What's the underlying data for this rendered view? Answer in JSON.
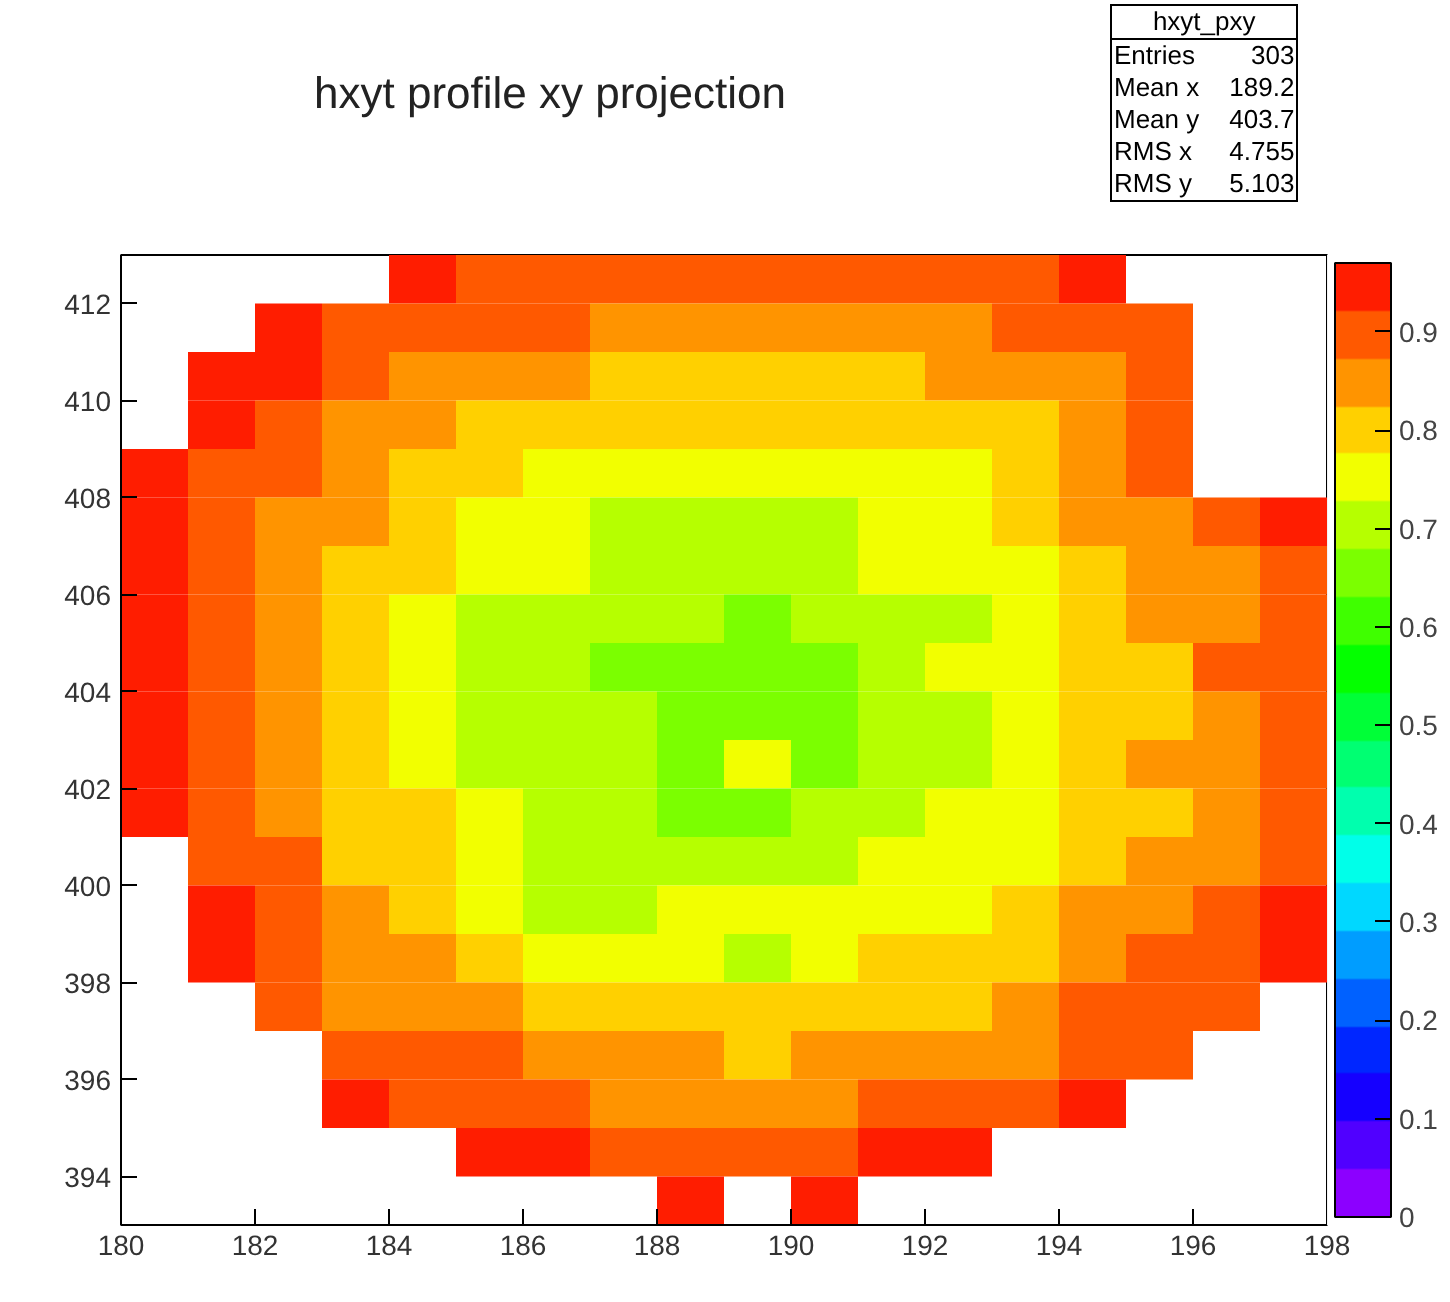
{
  "chart_data": {
    "type": "heatmap",
    "title": "hxyt profile xy projection",
    "annotations": [
      "hxyt_pxy",
      "Entries 303",
      "Mean x 189.2",
      "Mean y 403.7",
      "RMS x 4.755",
      "RMS y 5.103"
    ],
    "cells": [
      [
        null,
        null,
        null,
        null,
        0.95,
        0.9,
        0.9,
        0.9,
        0.9,
        0.9,
        0.9,
        0.9,
        0.9,
        0.9,
        0.95,
        null,
        null,
        null
      ],
      [
        null,
        null,
        0.95,
        0.9,
        0.9,
        0.9,
        0.9,
        0.85,
        0.85,
        0.85,
        0.85,
        0.85,
        0.85,
        0.9,
        0.9,
        0.9,
        null,
        null
      ],
      [
        null,
        0.95,
        0.95,
        0.9,
        0.85,
        0.85,
        0.85,
        0.8,
        0.8,
        0.8,
        0.8,
        0.8,
        0.85,
        0.85,
        0.85,
        0.9,
        null,
        null
      ],
      [
        null,
        0.95,
        0.9,
        0.85,
        0.85,
        0.8,
        0.8,
        0.8,
        0.8,
        0.8,
        0.8,
        0.8,
        0.8,
        0.8,
        0.85,
        0.9,
        null,
        null
      ],
      [
        0.95,
        0.9,
        0.9,
        0.85,
        0.8,
        0.8,
        0.75,
        0.75,
        0.75,
        0.75,
        0.75,
        0.75,
        0.75,
        0.8,
        0.85,
        0.9,
        null,
        null
      ],
      [
        0.95,
        0.9,
        0.85,
        0.85,
        0.8,
        0.75,
        0.75,
        0.7,
        0.7,
        0.7,
        0.7,
        0.75,
        0.75,
        0.8,
        0.85,
        0.85,
        0.9,
        0.95
      ],
      [
        0.95,
        0.9,
        0.85,
        0.8,
        0.8,
        0.75,
        0.75,
        0.7,
        0.7,
        0.7,
        0.7,
        0.75,
        0.75,
        0.75,
        0.8,
        0.85,
        0.85,
        0.9
      ],
      [
        0.95,
        0.9,
        0.85,
        0.8,
        0.75,
        0.7,
        0.7,
        0.7,
        0.7,
        0.65,
        0.7,
        0.7,
        0.7,
        0.75,
        0.8,
        0.85,
        0.85,
        0.9
      ],
      [
        0.95,
        0.9,
        0.85,
        0.8,
        0.75,
        0.7,
        0.7,
        0.65,
        0.65,
        0.65,
        0.65,
        0.7,
        0.75,
        0.75,
        0.8,
        0.8,
        0.9,
        0.9
      ],
      [
        0.95,
        0.9,
        0.85,
        0.8,
        0.75,
        0.7,
        0.7,
        0.7,
        0.65,
        0.65,
        0.65,
        0.7,
        0.7,
        0.75,
        0.8,
        0.8,
        0.85,
        0.9
      ],
      [
        0.95,
        0.9,
        0.85,
        0.8,
        0.75,
        0.7,
        0.7,
        0.7,
        0.65,
        0.75,
        0.65,
        0.7,
        0.7,
        0.75,
        0.8,
        0.85,
        0.85,
        0.9
      ],
      [
        0.95,
        0.9,
        0.85,
        0.8,
        0.8,
        0.75,
        0.7,
        0.7,
        0.65,
        0.65,
        0.7,
        0.7,
        0.75,
        0.75,
        0.8,
        0.8,
        0.85,
        0.9
      ],
      [
        null,
        0.9,
        0.9,
        0.8,
        0.8,
        0.75,
        0.7,
        0.7,
        0.7,
        0.7,
        0.7,
        0.75,
        0.75,
        0.75,
        0.8,
        0.85,
        0.85,
        0.9
      ],
      [
        null,
        0.95,
        0.9,
        0.85,
        0.8,
        0.75,
        0.7,
        0.7,
        0.75,
        0.75,
        0.75,
        0.75,
        0.75,
        0.8,
        0.85,
        0.85,
        0.9,
        0.95
      ],
      [
        null,
        0.95,
        0.9,
        0.85,
        0.85,
        0.8,
        0.75,
        0.75,
        0.75,
        0.7,
        0.75,
        0.8,
        0.8,
        0.8,
        0.85,
        0.9,
        0.9,
        0.95
      ],
      [
        null,
        null,
        0.9,
        0.85,
        0.85,
        0.85,
        0.8,
        0.8,
        0.8,
        0.8,
        0.8,
        0.8,
        0.8,
        0.85,
        0.9,
        0.9,
        0.9,
        null
      ],
      [
        null,
        null,
        null,
        0.9,
        0.9,
        0.9,
        0.85,
        0.85,
        0.85,
        0.8,
        0.85,
        0.85,
        0.85,
        0.85,
        0.9,
        0.9,
        null,
        null
      ],
      [
        null,
        null,
        null,
        0.95,
        0.9,
        0.9,
        0.9,
        0.85,
        0.85,
        0.85,
        0.85,
        0.9,
        0.9,
        0.9,
        0.95,
        null,
        null,
        null
      ],
      [
        null,
        null,
        null,
        null,
        null,
        0.95,
        0.95,
        0.9,
        0.9,
        0.9,
        0.9,
        0.95,
        0.95,
        null,
        null,
        null,
        null,
        null
      ],
      [
        null,
        null,
        null,
        null,
        null,
        null,
        null,
        null,
        0.95,
        null,
        0.95,
        null,
        null,
        null,
        null,
        null,
        null,
        null
      ]
    ],
    "xlim": [
      180,
      198
    ],
    "ylim": [
      393,
      413
    ],
    "xticks": [
      180,
      182,
      184,
      186,
      188,
      190,
      192,
      194,
      196,
      198
    ],
    "yticks": [
      394,
      396,
      398,
      400,
      402,
      404,
      406,
      408,
      410,
      412
    ],
    "clim": [
      0,
      0.97
    ],
    "cticks": [
      0,
      0.1,
      0.2,
      0.3,
      0.4,
      0.5,
      0.6,
      0.7,
      0.8,
      0.9
    ],
    "grid": false
  }
}
